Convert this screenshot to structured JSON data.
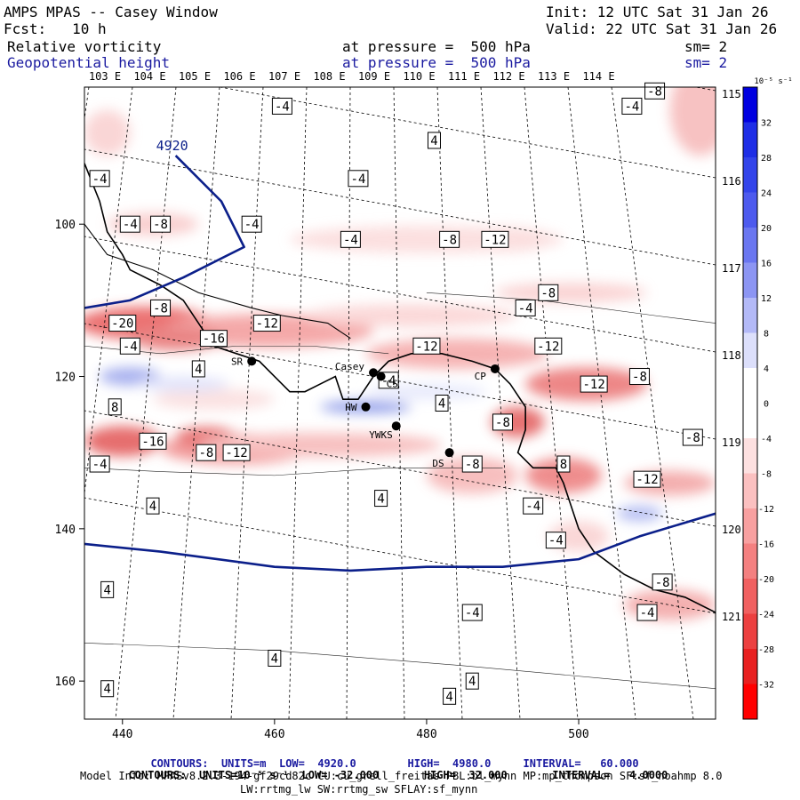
{
  "header": {
    "title": "AMPS MPAS -- Casey Window",
    "init": "Init: 12 UTC Sat 31 Jan 26",
    "fcst": "Fcst:   10 h",
    "valid": "Valid: 22 UTC Sat 31 Jan 26",
    "field1": "Relative vorticity",
    "pressure1": "at pressure =  500 hPa",
    "sm1": "sm= 2",
    "field2": "Geopotential height",
    "pressure2": "at pressure =  500 hPa",
    "sm2": "sm= 2"
  },
  "colors": {
    "contour_height": "#0b1f8a",
    "coast": "#000000",
    "grid": "#000000"
  },
  "chart_data": {
    "type": "map",
    "x_axis": {
      "range": [
        435,
        518
      ],
      "ticks": [
        "440",
        "460",
        "480",
        "500"
      ]
    },
    "y_axis": {
      "range": [
        82,
        165
      ],
      "ticks": [
        "100",
        "120",
        "140",
        "160"
      ]
    },
    "lon_labels": [
      "103 E",
      "104 E",
      "105 E",
      "106 E",
      "107 E",
      "108 E",
      "109 E",
      "110 E",
      "111 E",
      "112 E",
      "113 E",
      "114 E"
    ],
    "lat_labels": [
      "115 E",
      "116 E",
      "117 E",
      "118 E",
      "119 E",
      "120 E",
      "121 E"
    ],
    "colorbar": {
      "unit": "10⁻⁵ s⁻¹",
      "levels": [
        "32",
        "28",
        "24",
        "20",
        "16",
        "12",
        "8",
        "4",
        "0",
        "-4",
        "-8",
        "-12",
        "-16",
        "-20",
        "-24",
        "-28",
        "-32"
      ]
    },
    "height_contours": [
      {
        "label": "4920",
        "points": [
          [
            447,
            91
          ],
          [
            453,
            97
          ],
          [
            456,
            103
          ],
          [
            448,
            107
          ],
          [
            441,
            110
          ],
          [
            435,
            111
          ]
        ]
      },
      {
        "label": "",
        "points": [
          [
            435,
            142
          ],
          [
            445,
            143
          ],
          [
            460,
            145
          ],
          [
            470,
            145.5
          ],
          [
            480,
            145
          ],
          [
            490,
            145
          ],
          [
            500,
            144
          ],
          [
            508,
            141
          ],
          [
            518,
            138
          ]
        ]
      }
    ],
    "stations": [
      {
        "name": "SR",
        "x": 457,
        "y": 118
      },
      {
        "name": "Casey",
        "x": 473,
        "y": 119.5
      },
      {
        "name": "CS",
        "x": 474,
        "y": 120
      },
      {
        "name": "HW",
        "x": 472,
        "y": 124
      },
      {
        "name": "YWKS",
        "x": 476,
        "y": 126.5
      },
      {
        "name": "DS",
        "x": 483,
        "y": 130
      },
      {
        "name": "CP",
        "x": 489,
        "y": 119
      }
    ],
    "vorticity_labels": [
      {
        "v": "-4",
        "x": 461,
        "y": 84.5
      },
      {
        "v": "-4",
        "x": 507,
        "y": 84.5
      },
      {
        "v": "-8",
        "x": 510,
        "y": 82.5
      },
      {
        "v": "4",
        "x": 481,
        "y": 89
      },
      {
        "v": "-4",
        "x": 437,
        "y": 94
      },
      {
        "v": "-4",
        "x": 471,
        "y": 94
      },
      {
        "v": "-4",
        "x": 441,
        "y": 100
      },
      {
        "v": "-8",
        "x": 445,
        "y": 100
      },
      {
        "v": "-4",
        "x": 457,
        "y": 100
      },
      {
        "v": "-4",
        "x": 470,
        "y": 102
      },
      {
        "v": "-8",
        "x": 483,
        "y": 102
      },
      {
        "v": "-12",
        "x": 489,
        "y": 102
      },
      {
        "v": "-8",
        "x": 445,
        "y": 111
      },
      {
        "v": "-8",
        "x": 496,
        "y": 109
      },
      {
        "v": "-4",
        "x": 493,
        "y": 111
      },
      {
        "v": "-20",
        "x": 440,
        "y": 113
      },
      {
        "v": "-12",
        "x": 459,
        "y": 113
      },
      {
        "v": "-16",
        "x": 452,
        "y": 115
      },
      {
        "v": "-4",
        "x": 441,
        "y": 116
      },
      {
        "v": "-12",
        "x": 480,
        "y": 116
      },
      {
        "v": "-12",
        "x": 496,
        "y": 116
      },
      {
        "v": "4",
        "x": 450,
        "y": 119
      },
      {
        "v": "-4",
        "x": 475,
        "y": 120.5
      },
      {
        "v": "-8",
        "x": 508,
        "y": 120
      },
      {
        "v": "-12",
        "x": 502,
        "y": 121
      },
      {
        "v": "8",
        "x": 439,
        "y": 124
      },
      {
        "v": "4",
        "x": 482,
        "y": 123.5
      },
      {
        "v": "-8",
        "x": 490,
        "y": 126
      },
      {
        "v": "-16",
        "x": 444,
        "y": 128.5
      },
      {
        "v": "-8",
        "x": 451,
        "y": 130
      },
      {
        "v": "-12",
        "x": 455,
        "y": 130
      },
      {
        "v": "-8",
        "x": 515,
        "y": 128
      },
      {
        "v": "-4",
        "x": 437,
        "y": 131.5
      },
      {
        "v": "-8",
        "x": 486,
        "y": 131.5
      },
      {
        "v": "8",
        "x": 498,
        "y": 131.5
      },
      {
        "v": "-12",
        "x": 509,
        "y": 133.5
      },
      {
        "v": "4",
        "x": 444,
        "y": 137
      },
      {
        "v": "4",
        "x": 474,
        "y": 136
      },
      {
        "v": "-4",
        "x": 494,
        "y": 137
      },
      {
        "v": "-4",
        "x": 497,
        "y": 141.5
      },
      {
        "v": "-8",
        "x": 511,
        "y": 147
      },
      {
        "v": "4",
        "x": 438,
        "y": 148
      },
      {
        "v": "-4",
        "x": 486,
        "y": 151
      },
      {
        "v": "-4",
        "x": 509,
        "y": 151
      },
      {
        "v": "4",
        "x": 460,
        "y": 157
      },
      {
        "v": "4",
        "x": 486,
        "y": 160
      },
      {
        "v": "4",
        "x": 438,
        "y": 161
      },
      {
        "v": "4",
        "x": 483,
        "y": 162
      }
    ]
  },
  "footer": {
    "line1_contours": "CONTOURS:",
    "line1_units": "UNITS=m",
    "line1_low": "LOW=  4920.0",
    "line1_high": "HIGH=  4980.0",
    "line1_interval": "INTERVAL=   60.000",
    "line2_contours": "CONTOURS:",
    "line2_units": "UNITS=10⁻⁵ s⁻¹",
    "line2_low": "LOW= -32.000",
    "line2_high": "HIGH=  32.000",
    "line2_interval": "INTERVAL=   4.0000",
    "model_info": "Model Info: MPASv8.2.3-194-gf29cd82c CU:cu_grell_freitas PBL:bl_mynn MP:mp_thompson SF:sf_noahmp 8.0",
    "model_info2": "LW:rrtmg_lw SW:rrtmg_sw SFLAY:sf_mynn"
  }
}
